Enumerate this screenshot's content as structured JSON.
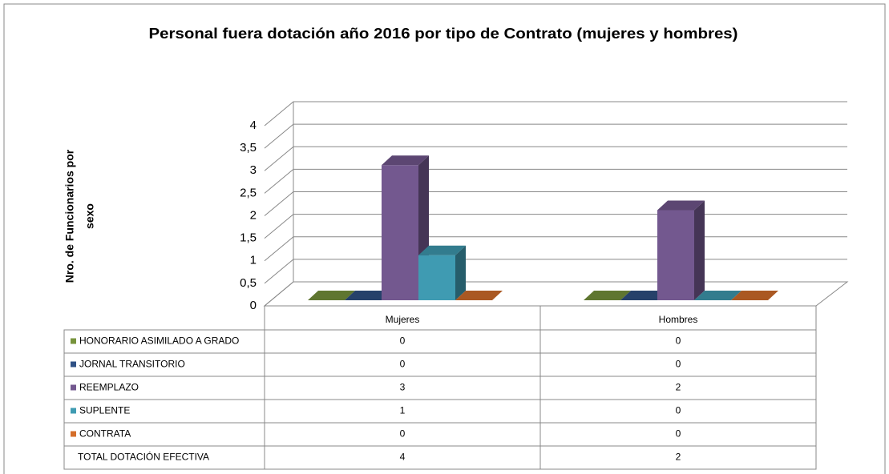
{
  "chart_data": {
    "type": "bar3d",
    "title": "Personal fuera dotación año 2016 por tipo de Contrato (mujeres y hombres)",
    "ylabel": [
      "Nro. de Funcionarios por",
      "sexo"
    ],
    "categories": [
      "Mujeres",
      "Hombres"
    ],
    "series": [
      {
        "name": "HONORARIO ASIMILADO A GRADO",
        "color": "#77933c",
        "values": [
          0,
          0
        ]
      },
      {
        "name": "JORNAL TRANSITORIO",
        "color": "#2f5185",
        "values": [
          0,
          0
        ]
      },
      {
        "name": "REEMPLAZO",
        "color": "#73588f",
        "values": [
          3,
          2
        ]
      },
      {
        "name": "SUPLENTE",
        "color": "#3f9bb2",
        "values": [
          1,
          0
        ]
      },
      {
        "name": "CONTRATA",
        "color": "#d46e2a",
        "values": [
          0,
          0
        ]
      }
    ],
    "total_row": {
      "name": "TOTAL DOTACIÓN EFECTIVA",
      "values": [
        4,
        2
      ]
    },
    "ylim": [
      0,
      4
    ],
    "yticks": [
      0,
      {
        "value": 0.5,
        "label": "0,5"
      },
      1,
      {
        "value": 1.5,
        "label": "1,5"
      },
      2,
      {
        "value": 2.5,
        "label": "2,5"
      },
      3,
      {
        "value": 3.5,
        "label": "3,5"
      },
      4
    ],
    "grid": true
  }
}
